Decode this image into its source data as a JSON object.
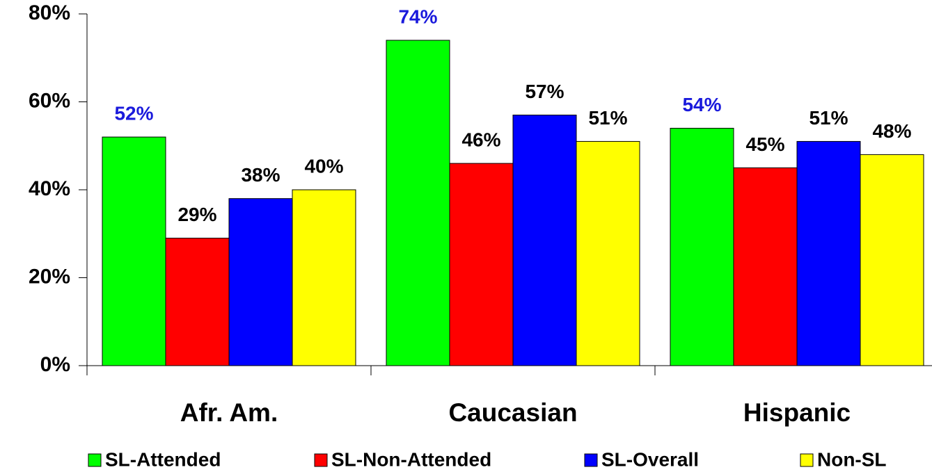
{
  "chart_data": {
    "type": "bar",
    "categories": [
      "Afr. Am.",
      "Caucasian",
      "Hispanic"
    ],
    "series": [
      {
        "name": "SL-Attended",
        "color": "#00ff00",
        "label_color": "#1a1adc",
        "values": [
          52,
          74,
          54
        ],
        "value_labels": [
          "52%",
          "74%",
          "54%"
        ]
      },
      {
        "name": "SL-Non-Attended",
        "color": "#ff0000",
        "label_color": "#000000",
        "values": [
          29,
          46,
          45
        ],
        "value_labels": [
          "29%",
          "46%",
          "45%"
        ]
      },
      {
        "name": "SL-Overall",
        "color": "#0000ff",
        "label_color": "#000000",
        "values": [
          38,
          57,
          51
        ],
        "value_labels": [
          "38%",
          "57%",
          "51%"
        ]
      },
      {
        "name": "Non-SL",
        "color": "#ffff00",
        "label_color": "#000000",
        "values": [
          40,
          51,
          48
        ],
        "value_labels": [
          "40%",
          "51%",
          "48%"
        ]
      }
    ],
    "ylim": [
      0,
      80
    ],
    "yticks": [
      {
        "value": 0,
        "label": "0%"
      },
      {
        "value": 20,
        "label": "20%"
      },
      {
        "value": 40,
        "label": "40%"
      },
      {
        "value": 60,
        "label": "60%"
      },
      {
        "value": 80,
        "label": "80%"
      }
    ],
    "grid": false,
    "legend": "bottom"
  }
}
